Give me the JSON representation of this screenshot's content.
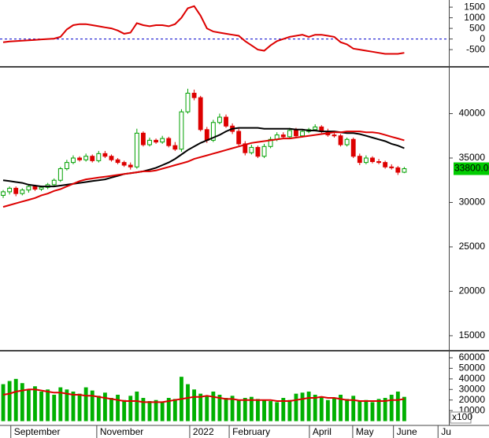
{
  "chart_data": [
    {
      "type": "line",
      "x": [
        0,
        1,
        2,
        3,
        4,
        5,
        6,
        7,
        8,
        9,
        10,
        11,
        12,
        13,
        14,
        15,
        16,
        17,
        18,
        19,
        20,
        21,
        22,
        23,
        24,
        25,
        26,
        27,
        28,
        29,
        30,
        31,
        32,
        33,
        34,
        35,
        36,
        37,
        38,
        39,
        40,
        41,
        42,
        43,
        44,
        45,
        46,
        47,
        48,
        49,
        50,
        51,
        52,
        53,
        54,
        55,
        56,
        57,
        58,
        59,
        60,
        61,
        62,
        63
      ],
      "xlim": [
        -0.5,
        70
      ],
      "ylim": [
        -1200,
        1800
      ],
      "yticks": [
        1500,
        1000,
        500,
        0,
        -500
      ],
      "zero_line_color": "#0000cc",
      "series": [
        {
          "color": "#dd0000",
          "values": [
            -150,
            -120,
            -100,
            -80,
            -60,
            -40,
            -20,
            0,
            20,
            100,
            450,
            650,
            700,
            700,
            650,
            600,
            550,
            500,
            400,
            250,
            300,
            750,
            650,
            600,
            650,
            650,
            600,
            700,
            1000,
            1450,
            1550,
            1100,
            500,
            350,
            300,
            250,
            200,
            150,
            -100,
            -300,
            -500,
            -550,
            -300,
            -100,
            0,
            100,
            150,
            200,
            100,
            200,
            200,
            150,
            100,
            -150,
            -250,
            -450,
            -500,
            -550,
            -600,
            -650,
            -700,
            -700,
            -700,
            -650
          ]
        }
      ]
    },
    {
      "type": "candlestick",
      "x": [
        0,
        1,
        2,
        3,
        4,
        5,
        6,
        7,
        8,
        9,
        10,
        11,
        12,
        13,
        14,
        15,
        16,
        17,
        18,
        19,
        20,
        21,
        22,
        23,
        24,
        25,
        26,
        27,
        28,
        29,
        30,
        31,
        32,
        33,
        34,
        35,
        36,
        37,
        38,
        39,
        40,
        41,
        42,
        43,
        44,
        45,
        46,
        47,
        48,
        49,
        50,
        51,
        52,
        53,
        54,
        55,
        56,
        57,
        58,
        59,
        60,
        61,
        62,
        63
      ],
      "xlim": [
        -0.5,
        70
      ],
      "ylim": [
        13400,
        45000
      ],
      "yticks": [
        40000,
        35000,
        30000,
        25000,
        20000,
        15000
      ],
      "up_color": "#00a000",
      "down_color": "#dd0000",
      "open": [
        30800,
        31200,
        31600,
        31000,
        31400,
        31800,
        31500,
        31700,
        32000,
        32500,
        33800,
        34500,
        35000,
        34800,
        35200,
        34700,
        35500,
        35200,
        34800,
        34500,
        34200,
        34000,
        37800,
        36500,
        37000,
        36800,
        37200,
        36400,
        36000,
        40200,
        42300,
        41800,
        38200,
        37000,
        39000,
        39600,
        38600,
        38000,
        36600,
        35600,
        36200,
        35200,
        36300,
        37100,
        37600,
        37400,
        38100,
        37500,
        38000,
        38200,
        38500,
        38000,
        37600,
        37500,
        36500,
        37100,
        35200,
        34500,
        35000,
        34600,
        34500,
        34000,
        33900,
        33400
      ],
      "high": [
        31400,
        31800,
        31800,
        31600,
        32000,
        32000,
        31900,
        32200,
        32700,
        34000,
        34800,
        35300,
        35200,
        35500,
        35400,
        35800,
        35800,
        35400,
        35000,
        34700,
        34500,
        38300,
        38000,
        37300,
        37200,
        37500,
        37400,
        36800,
        40500,
        42800,
        42700,
        42000,
        38500,
        39300,
        40000,
        39900,
        38900,
        38300,
        36900,
        36500,
        36400,
        36600,
        37400,
        37900,
        37900,
        38400,
        38400,
        38200,
        38400,
        38800,
        38700,
        38300,
        37800,
        37700,
        37300,
        37300,
        35500,
        35300,
        35200,
        34900,
        34700,
        34300,
        34100,
        34000
      ],
      "low": [
        30500,
        30900,
        30700,
        30800,
        31100,
        31300,
        31300,
        31500,
        31800,
        32300,
        33600,
        34300,
        34600,
        34600,
        34500,
        34500,
        35000,
        34600,
        34300,
        34000,
        33700,
        33800,
        36300,
        36300,
        36600,
        36600,
        36200,
        35800,
        35700,
        40000,
        41500,
        38000,
        36700,
        36800,
        38800,
        38400,
        37700,
        36400,
        35300,
        35400,
        35000,
        35000,
        36100,
        36900,
        37200,
        37200,
        37300,
        37300,
        37800,
        38000,
        37800,
        37400,
        37300,
        36300,
        36300,
        35000,
        34200,
        34300,
        34400,
        34300,
        33800,
        33700,
        33100,
        33300
      ],
      "close": [
        31200,
        31600,
        31000,
        31400,
        31800,
        31500,
        31700,
        32000,
        32500,
        33800,
        34500,
        35000,
        34800,
        35200,
        34700,
        35500,
        35200,
        34800,
        34500,
        34200,
        34000,
        37800,
        36500,
        37000,
        36800,
        37200,
        36400,
        36000,
        40200,
        42300,
        41800,
        38200,
        37000,
        39000,
        39600,
        38600,
        38000,
        36600,
        35600,
        36200,
        35200,
        36300,
        37100,
        37600,
        37400,
        38100,
        37500,
        38000,
        38200,
        38500,
        38000,
        37600,
        37500,
        36500,
        37100,
        35200,
        34500,
        35000,
        34600,
        34500,
        34000,
        33900,
        33400,
        33800
      ],
      "series": [
        {
          "color": "#000000",
          "values": [
            32500,
            32400,
            32300,
            32200,
            32000,
            31900,
            31800,
            31800,
            31800,
            31900,
            32000,
            32100,
            32200,
            32300,
            32400,
            32500,
            32600,
            32800,
            33000,
            33200,
            33300,
            33400,
            33500,
            33700,
            33900,
            34200,
            34500,
            34900,
            35400,
            35900,
            36300,
            36700,
            37000,
            37300,
            37600,
            38000,
            38300,
            38400,
            38400,
            38400,
            38400,
            38300,
            38300,
            38300,
            38300,
            38300,
            38200,
            38200,
            38100,
            38100,
            38000,
            38000,
            38000,
            37900,
            37800,
            37800,
            37700,
            37500,
            37300,
            37100,
            36900,
            36600,
            36400,
            36100
          ]
        },
        {
          "color": "#dd0000",
          "values": [
            29500,
            29700,
            29900,
            30100,
            30300,
            30500,
            30800,
            31000,
            31300,
            31500,
            31800,
            32100,
            32400,
            32600,
            32700,
            32800,
            32900,
            33000,
            33100,
            33200,
            33300,
            33400,
            33500,
            33500,
            33600,
            33800,
            34000,
            34200,
            34400,
            34600,
            34900,
            35100,
            35300,
            35500,
            35700,
            35900,
            36100,
            36300,
            36500,
            36700,
            36800,
            36900,
            37000,
            37100,
            37200,
            37200,
            37300,
            37400,
            37500,
            37600,
            37700,
            37800,
            37900,
            37900,
            38000,
            38000,
            38000,
            37900,
            37900,
            37800,
            37600,
            37400,
            37200,
            37000
          ]
        }
      ],
      "last_price": {
        "value": 33800,
        "label": "33800.00",
        "color": "#00cc00"
      }
    },
    {
      "type": "bar",
      "x": [
        0,
        1,
        2,
        3,
        4,
        5,
        6,
        7,
        8,
        9,
        10,
        11,
        12,
        13,
        14,
        15,
        16,
        17,
        18,
        19,
        20,
        21,
        22,
        23,
        24,
        25,
        26,
        27,
        28,
        29,
        30,
        31,
        32,
        33,
        34,
        35,
        36,
        37,
        38,
        39,
        40,
        41,
        42,
        43,
        44,
        45,
        46,
        47,
        48,
        49,
        50,
        51,
        52,
        53,
        54,
        55,
        56,
        57,
        58,
        59,
        60,
        61,
        62,
        63
      ],
      "xlim": [
        -0.5,
        70
      ],
      "ylim": [
        -3300,
        65200
      ],
      "yticks": [
        60000,
        50000,
        40000,
        30000,
        20000,
        10000
      ],
      "unit_label": "x100",
      "color": "#00b000",
      "values": [
        35000,
        38000,
        40000,
        36000,
        30000,
        33000,
        28000,
        30000,
        25000,
        32000,
        30000,
        28000,
        26000,
        32000,
        29000,
        24000,
        27000,
        22000,
        25000,
        20000,
        24000,
        28000,
        22000,
        19000,
        20000,
        18000,
        22000,
        21000,
        42000,
        35000,
        30000,
        26000,
        24000,
        28000,
        25000,
        22000,
        24000,
        20000,
        22000,
        23000,
        21000,
        20000,
        19000,
        18000,
        22000,
        20000,
        26000,
        27000,
        28000,
        25000,
        23000,
        20000,
        22000,
        25000,
        21000,
        24000,
        19000,
        20000,
        18000,
        21000,
        22000,
        25000,
        28000,
        23000
      ],
      "series": [
        {
          "color": "#dd0000",
          "values": [
            25000,
            26000,
            28000,
            29000,
            30000,
            30000,
            29000,
            28000,
            27000,
            27000,
            26000,
            25000,
            25000,
            24000,
            24000,
            23000,
            22000,
            21000,
            20000,
            19000,
            19000,
            19000,
            18000,
            18000,
            18000,
            18000,
            19000,
            20000,
            21000,
            22000,
            23000,
            23000,
            24000,
            23000,
            22000,
            21000,
            21000,
            20000,
            20000,
            20000,
            20000,
            20000,
            20000,
            19000,
            19000,
            19000,
            20000,
            21000,
            22000,
            22000,
            23000,
            22000,
            22000,
            21000,
            20000,
            20000,
            19000,
            19000,
            19000,
            19000,
            19000,
            20000,
            20000,
            21000
          ]
        }
      ],
      "xticks": [
        {
          "value": 1.2,
          "label": "September"
        },
        {
          "value": 14.7,
          "label": "November"
        },
        {
          "value": 29.3,
          "label": "2022"
        },
        {
          "value": 35.5,
          "label": "February"
        },
        {
          "value": 48.1,
          "label": "April"
        },
        {
          "value": 54.9,
          "label": "May"
        },
        {
          "value": 61.3,
          "label": "June"
        },
        {
          "value": 68.3,
          "label": "Ju"
        }
      ]
    }
  ]
}
